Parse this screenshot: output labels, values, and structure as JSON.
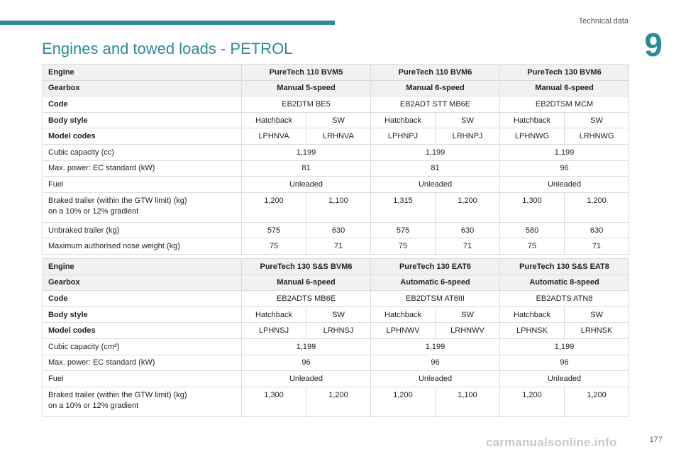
{
  "header": {
    "section": "Technical data",
    "chapter_number": "9"
  },
  "page_title": "Engines and towed loads - PETROL",
  "tables": [
    {
      "engines": [
        "PureTech 110 BVM5",
        "PureTech 110 BVM6",
        "PureTech 130 BVM6"
      ],
      "gearboxes": [
        "Manual 5-speed",
        "Manual 6-speed",
        "Manual 6-speed"
      ],
      "codes": [
        "EB2DTM BE5",
        "EB2ADT STT MB6E",
        "EB2DTSM MCM"
      ],
      "body_styles": [
        "Hatchback",
        "SW",
        "Hatchback",
        "SW",
        "Hatchback",
        "SW"
      ],
      "model_codes": [
        "LPHNVA",
        "LRHNVA",
        "LPHNPJ",
        "LRHNPJ",
        "LPHNWG",
        "LRHNWG"
      ],
      "cubic_capacity": [
        "1,199",
        "1,199",
        "1,199"
      ],
      "max_power": [
        "81",
        "81",
        "96"
      ],
      "fuel": [
        "Unleaded",
        "Unleaded",
        "Unleaded"
      ],
      "braked_trailer": [
        "1,200",
        "1,100",
        "1,315",
        "1,200",
        "1,300",
        "1,200"
      ],
      "unbraked_trailer": [
        "575",
        "630",
        "575",
        "630",
        "580",
        "630"
      ],
      "nose_weight": [
        "75",
        "71",
        "75",
        "71",
        "75",
        "71"
      ]
    },
    {
      "engines": [
        "PureTech 130 S&S BVM6",
        "PureTech 130 EAT6",
        "PureTech 130 S&S EAT8"
      ],
      "gearboxes": [
        "Manual 6-speed",
        "Automatic 6-speed",
        "Automatic 8-speed"
      ],
      "codes": [
        "EB2ADTS MB6E",
        "EB2DTSM AT6III",
        "EB2ADTS ATN8"
      ],
      "body_styles": [
        "Hatchback",
        "SW",
        "Hatchback",
        "SW",
        "Hatchback",
        "SW"
      ],
      "model_codes": [
        "LPHNSJ",
        "LRHNSJ",
        "LPHNWV",
        "LRHNWV",
        "LPHNSK",
        "LRHNSK"
      ],
      "cubic_capacity": [
        "1,199",
        "1,199",
        "1,199"
      ],
      "max_power": [
        "96",
        "96",
        "96"
      ],
      "fuel": [
        "Unleaded",
        "Unleaded",
        "Unleaded"
      ],
      "braked_trailer": [
        "1,300",
        "1,200",
        "1,200",
        "1,100",
        "1,200",
        "1,200"
      ]
    }
  ],
  "labels": {
    "engine": "Engine",
    "gearbox": "Gearbox",
    "code": "Code",
    "body_style": "Body style",
    "model_codes": "Model codes",
    "cubic_capacity_cc": "Cubic capacity (cc)",
    "cubic_capacity_cm3": "Cubic capacity (cm³)",
    "max_power": "Max. power: EC standard (kW)",
    "fuel": "Fuel",
    "braked_trailer_line1": "Braked trailer (within the GTW limit) (kg)",
    "braked_trailer_line2": "on a 10% or 12% gradient",
    "unbraked_trailer": "Unbraked trailer (kg)",
    "nose_weight": "Maximum authorised nose weight (kg)"
  },
  "footer": {
    "page_number": "177",
    "watermark": "carmanualsonline.info"
  }
}
